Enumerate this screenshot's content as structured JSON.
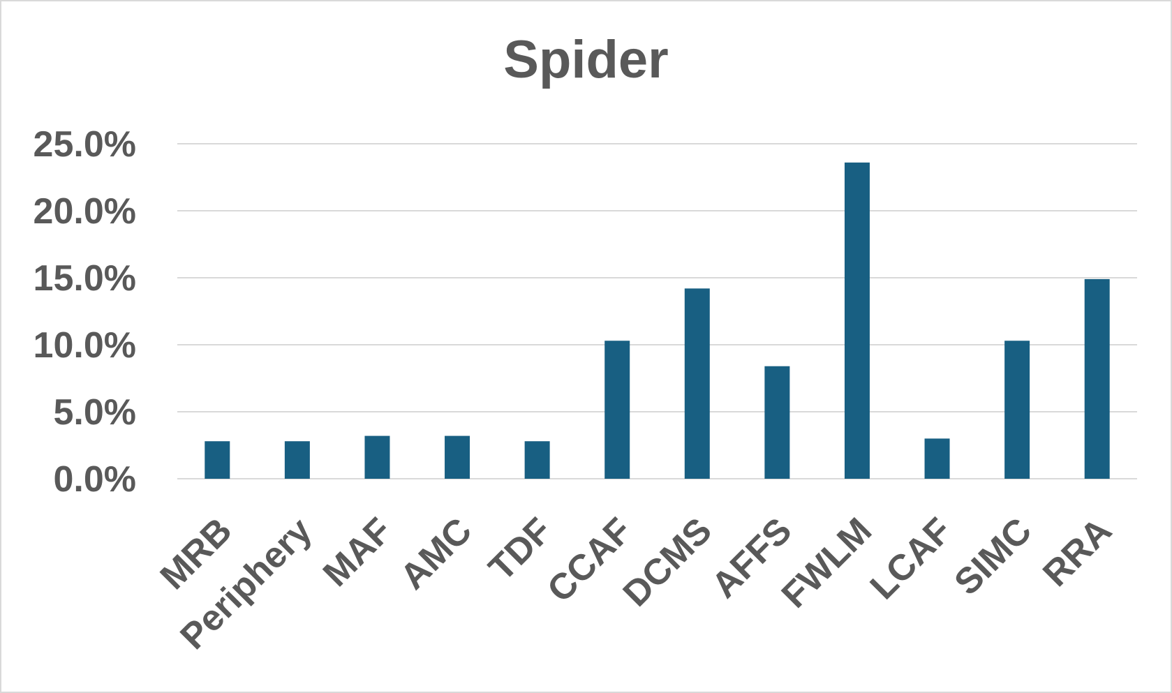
{
  "chart_data": {
    "type": "bar",
    "title": "Spider",
    "xlabel": "",
    "ylabel": "",
    "categories": [
      "MRB",
      "Periphery",
      "MAF",
      "AMC",
      "TDF",
      "CCAF",
      "DCMS",
      "AFFS",
      "FWLM",
      "LCAF",
      "SIMC",
      "RRA"
    ],
    "values": [
      2.8,
      2.8,
      3.2,
      3.2,
      2.8,
      10.3,
      14.2,
      8.4,
      23.6,
      3.0,
      10.3,
      14.9
    ],
    "value_unit": "%",
    "ylim": [
      0,
      25
    ],
    "y_ticks": [
      "0.0%",
      "5.0%",
      "10.0%",
      "15.0%",
      "20.0%",
      "25.0%"
    ],
    "y_tick_values": [
      0,
      5,
      10,
      15,
      20,
      25
    ],
    "grid": true,
    "legend": "none",
    "bar_color": "#185f82",
    "grid_color": "#d9d9d9",
    "text_color": "#595959"
  }
}
